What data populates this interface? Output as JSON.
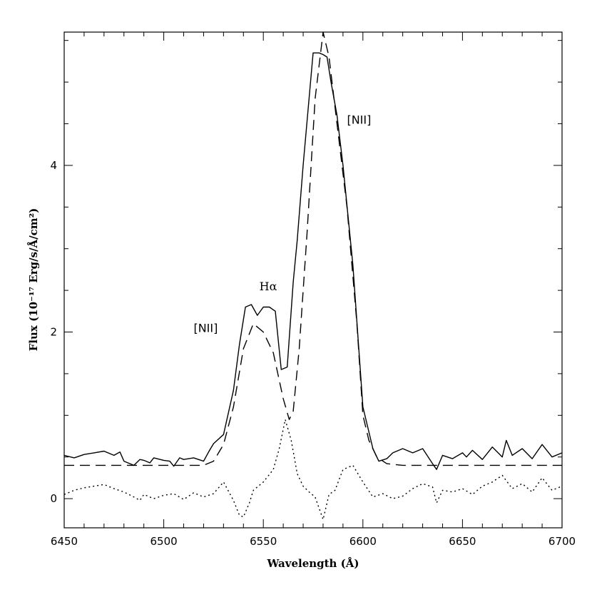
{
  "chart_data": {
    "type": "line",
    "title": "",
    "xlabel": "Wavelength (Å)",
    "ylabel": "Flux (10⁻¹⁷ Erg/s/Å/cm²)",
    "xlim": [
      6450,
      6700
    ],
    "ylim": [
      -0.35,
      5.6
    ],
    "x_ticks": [
      6450,
      6500,
      6550,
      6600,
      6650,
      6700
    ],
    "y_ticks": [
      0,
      2,
      4
    ],
    "grid": false,
    "annotations": [
      {
        "text": "[NII]",
        "x": 6515,
        "y": 2.0
      },
      {
        "text": "Hα",
        "x": 6548,
        "y": 2.5
      },
      {
        "text": "[NII]",
        "x": 6592,
        "y": 4.5
      }
    ],
    "series": [
      {
        "style": "solid",
        "x": [
          6450,
          6455,
          6460,
          6465,
          6470,
          6475,
          6478,
          6480,
          6485,
          6488,
          6490,
          6493,
          6495,
          6500,
          6503,
          6505,
          6508,
          6510,
          6515,
          6520,
          6523,
          6525,
          6530,
          6535,
          6538,
          6541,
          6544,
          6547,
          6550,
          6553,
          6556,
          6559,
          6562,
          6565,
          6567,
          6570,
          6575,
          6578,
          6580,
          6582,
          6584,
          6587,
          6590,
          6595,
          6600,
          6605,
          6608,
          6612,
          6615,
          6620,
          6625,
          6630,
          6635,
          6637,
          6640,
          6645,
          6650,
          6652,
          6655,
          6660,
          6665,
          6670,
          6672,
          6675,
          6680,
          6685,
          6690,
          6695,
          6700
        ],
        "y": [
          0.52,
          0.49,
          0.53,
          0.55,
          0.57,
          0.52,
          0.56,
          0.45,
          0.4,
          0.47,
          0.46,
          0.43,
          0.49,
          0.46,
          0.45,
          0.39,
          0.49,
          0.47,
          0.49,
          0.45,
          0.58,
          0.66,
          0.77,
          1.3,
          1.85,
          2.3,
          2.33,
          2.2,
          2.3,
          2.3,
          2.25,
          1.55,
          1.58,
          2.6,
          3.1,
          4.0,
          5.35,
          5.35,
          5.33,
          5.3,
          5.0,
          4.6,
          4.0,
          2.8,
          1.1,
          0.6,
          0.45,
          0.48,
          0.55,
          0.6,
          0.55,
          0.6,
          0.42,
          0.35,
          0.52,
          0.48,
          0.55,
          0.5,
          0.58,
          0.47,
          0.62,
          0.5,
          0.7,
          0.52,
          0.6,
          0.48,
          0.65,
          0.5,
          0.55
        ]
      },
      {
        "style": "dashed",
        "x": [
          6450,
          6520,
          6525,
          6530,
          6535,
          6540,
          6545,
          6550,
          6555,
          6560,
          6563,
          6565,
          6568,
          6572,
          6576,
          6580,
          6583,
          6587,
          6592,
          6597,
          6600,
          6603,
          6607,
          6612,
          6620,
          6700
        ],
        "y": [
          0.4,
          0.4,
          0.45,
          0.65,
          1.1,
          1.8,
          2.1,
          2.0,
          1.75,
          1.2,
          0.95,
          1.05,
          1.8,
          3.2,
          4.8,
          5.6,
          5.3,
          4.5,
          3.5,
          2.1,
          1.0,
          0.7,
          0.5,
          0.42,
          0.4,
          0.4
        ]
      },
      {
        "style": "dotted",
        "x": [
          6450,
          6455,
          6460,
          6465,
          6470,
          6475,
          6480,
          6485,
          6488,
          6490,
          6495,
          6500,
          6505,
          6510,
          6515,
          6520,
          6525,
          6530,
          6535,
          6538,
          6540,
          6543,
          6545,
          6550,
          6555,
          6558,
          6561,
          6564,
          6567,
          6570,
          6573,
          6576,
          6580,
          6583,
          6586,
          6590,
          6595,
          6600,
          6605,
          6610,
          6615,
          6620,
          6625,
          6630,
          6635,
          6637,
          6640,
          6645,
          6650,
          6655,
          6660,
          6665,
          6670,
          6675,
          6680,
          6685,
          6690,
          6695,
          6700
        ],
        "y": [
          0.05,
          0.1,
          0.13,
          0.15,
          0.17,
          0.12,
          0.08,
          0.02,
          -0.02,
          0.05,
          0.0,
          0.04,
          0.06,
          -0.01,
          0.07,
          0.02,
          0.06,
          0.2,
          -0.02,
          -0.2,
          -0.22,
          -0.05,
          0.1,
          0.2,
          0.35,
          0.6,
          0.95,
          0.7,
          0.3,
          0.15,
          0.08,
          0.02,
          -0.25,
          0.05,
          0.1,
          0.35,
          0.4,
          0.2,
          0.02,
          0.06,
          0.0,
          0.03,
          0.12,
          0.18,
          0.14,
          -0.05,
          0.1,
          0.08,
          0.12,
          0.05,
          0.15,
          0.2,
          0.28,
          0.12,
          0.18,
          0.08,
          0.25,
          0.1,
          0.15
        ]
      }
    ]
  }
}
